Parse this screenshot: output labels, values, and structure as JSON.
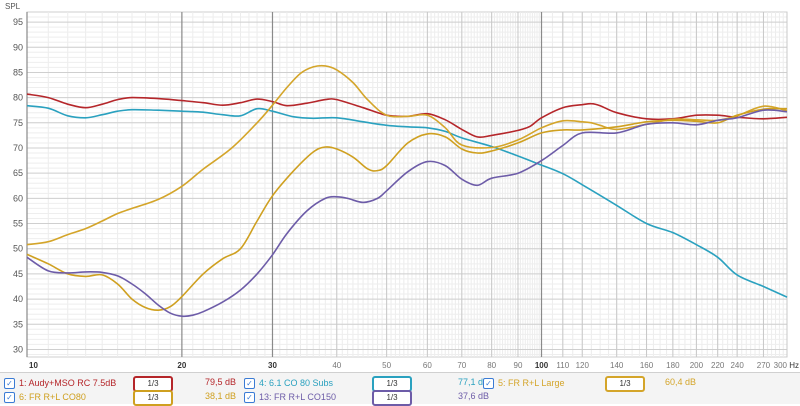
{
  "chart_data": {
    "type": "line",
    "ylabel": "SPL",
    "xunit": "Hz",
    "xscale": "log",
    "xlim": [
      10,
      300
    ],
    "ylim": [
      28.5,
      97
    ],
    "yticks": [
      30,
      35,
      40,
      45,
      50,
      55,
      60,
      65,
      70,
      75,
      80,
      85,
      90,
      95
    ],
    "xticks": [
      {
        "v": 10,
        "label": "10",
        "major": true
      },
      {
        "v": 20,
        "label": "20",
        "major": true
      },
      {
        "v": 30,
        "label": "30",
        "major": true
      },
      {
        "v": 40,
        "label": "40",
        "major": false
      },
      {
        "v": 50,
        "label": "50",
        "major": false
      },
      {
        "v": 60,
        "label": "60",
        "major": false
      },
      {
        "v": 70,
        "label": "70",
        "major": false
      },
      {
        "v": 80,
        "label": "80",
        "major": false
      },
      {
        "v": 90,
        "label": "90",
        "major": false
      },
      {
        "v": 100,
        "label": "100",
        "major": true
      },
      {
        "v": 110,
        "label": "110",
        "major": false
      },
      {
        "v": 120,
        "label": "120",
        "major": false
      },
      {
        "v": 140,
        "label": "140",
        "major": false
      },
      {
        "v": 160,
        "label": "160",
        "major": false
      },
      {
        "v": 180,
        "label": "180",
        "major": false
      },
      {
        "v": 200,
        "label": "200",
        "major": false
      },
      {
        "v": 220,
        "label": "220",
        "major": false
      },
      {
        "v": 240,
        "label": "240",
        "major": false
      },
      {
        "v": 270,
        "label": "270",
        "major": false
      },
      {
        "v": 300,
        "label": "300",
        "major": false
      }
    ],
    "grid": true,
    "series": [
      {
        "name": "1: Audy+MSO RC 7.5dB",
        "color": "#b5262a",
        "smoothing": "1/3",
        "level": "79,5 dB",
        "points": [
          [
            10,
            80.7
          ],
          [
            11,
            80.0
          ],
          [
            12,
            78.7
          ],
          [
            13,
            78.0
          ],
          [
            14,
            78.7
          ],
          [
            15,
            79.6
          ],
          [
            16,
            80.0
          ],
          [
            18,
            79.8
          ],
          [
            20,
            79.4
          ],
          [
            22,
            79.0
          ],
          [
            24,
            78.5
          ],
          [
            26,
            79.0
          ],
          [
            28,
            79.7
          ],
          [
            30,
            79.2
          ],
          [
            32,
            78.4
          ],
          [
            35,
            78.9
          ],
          [
            38,
            79.6
          ],
          [
            40,
            79.6
          ],
          [
            45,
            78.0
          ],
          [
            50,
            76.5
          ],
          [
            55,
            76.3
          ],
          [
            60,
            76.8
          ],
          [
            65,
            75.6
          ],
          [
            70,
            73.7
          ],
          [
            75,
            72.2
          ],
          [
            80,
            72.5
          ],
          [
            90,
            73.5
          ],
          [
            95,
            74.3
          ],
          [
            100,
            76.0
          ],
          [
            110,
            78.0
          ],
          [
            120,
            78.6
          ],
          [
            125,
            78.8
          ],
          [
            130,
            78.4
          ],
          [
            140,
            77.0
          ],
          [
            160,
            75.8
          ],
          [
            180,
            75.8
          ],
          [
            200,
            76.5
          ],
          [
            220,
            76.5
          ],
          [
            240,
            76.1
          ],
          [
            270,
            75.8
          ],
          [
            300,
            76.1
          ]
        ]
      },
      {
        "name": "4: 6.1 CO 80 Subs",
        "color": "#2aa1bf",
        "smoothing": "1/3",
        "level": "77,1 dB",
        "points": [
          [
            10,
            78.4
          ],
          [
            11,
            77.9
          ],
          [
            12,
            76.4
          ],
          [
            13,
            76.0
          ],
          [
            14,
            76.6
          ],
          [
            15,
            77.3
          ],
          [
            16,
            77.6
          ],
          [
            18,
            77.5
          ],
          [
            20,
            77.3
          ],
          [
            22,
            77.1
          ],
          [
            24,
            76.6
          ],
          [
            26,
            76.4
          ],
          [
            28,
            77.8
          ],
          [
            30,
            77.3
          ],
          [
            33,
            76.2
          ],
          [
            36,
            75.9
          ],
          [
            40,
            76.0
          ],
          [
            45,
            75.2
          ],
          [
            50,
            74.5
          ],
          [
            55,
            74.2
          ],
          [
            60,
            74.0
          ],
          [
            65,
            73.3
          ],
          [
            70,
            72.0
          ],
          [
            80,
            70.3
          ],
          [
            90,
            68.4
          ],
          [
            100,
            66.6
          ],
          [
            110,
            64.9
          ],
          [
            120,
            62.7
          ],
          [
            140,
            58.6
          ],
          [
            160,
            55.0
          ],
          [
            180,
            53.2
          ],
          [
            200,
            50.8
          ],
          [
            220,
            48.3
          ],
          [
            240,
            44.8
          ],
          [
            270,
            42.5
          ],
          [
            300,
            40.4
          ]
        ]
      },
      {
        "name": "5: FR R+L Large",
        "color": "#d4a52a",
        "smoothing": "1/3",
        "level": "60,4 dB",
        "points": [
          [
            10,
            50.8
          ],
          [
            11,
            51.4
          ],
          [
            12,
            52.8
          ],
          [
            13,
            54.0
          ],
          [
            14,
            55.5
          ],
          [
            15,
            57.0
          ],
          [
            16,
            58.0
          ],
          [
            18,
            59.8
          ],
          [
            20,
            62.4
          ],
          [
            22,
            65.8
          ],
          [
            25,
            70.0
          ],
          [
            28,
            75.0
          ],
          [
            30,
            78.5
          ],
          [
            32,
            82.0
          ],
          [
            34,
            84.8
          ],
          [
            36,
            86.1
          ],
          [
            38,
            86.3
          ],
          [
            40,
            85.5
          ],
          [
            43,
            83.0
          ],
          [
            46,
            79.5
          ],
          [
            50,
            76.5
          ],
          [
            55,
            76.3
          ],
          [
            60,
            76.5
          ],
          [
            65,
            74.0
          ],
          [
            70,
            70.6
          ],
          [
            80,
            70.1
          ],
          [
            90,
            71.6
          ],
          [
            100,
            74.0
          ],
          [
            110,
            75.4
          ],
          [
            120,
            75.2
          ],
          [
            125,
            75.0
          ],
          [
            130,
            74.5
          ],
          [
            140,
            73.7
          ],
          [
            160,
            74.7
          ],
          [
            180,
            75.7
          ],
          [
            200,
            75.6
          ],
          [
            220,
            75.5
          ],
          [
            240,
            76.4
          ],
          [
            270,
            78.3
          ],
          [
            300,
            77.4
          ]
        ]
      },
      {
        "name": "6: FR R+L CO80",
        "color": "#cfa020",
        "smoothing": "1/3",
        "level": "38,1 dB",
        "points": [
          [
            10,
            48.9
          ],
          [
            11,
            47.0
          ],
          [
            12,
            45.0
          ],
          [
            13,
            44.5
          ],
          [
            14,
            44.8
          ],
          [
            15,
            43.0
          ],
          [
            16,
            40.0
          ],
          [
            17,
            38.3
          ],
          [
            18,
            37.8
          ],
          [
            19,
            38.5
          ],
          [
            20,
            40.5
          ],
          [
            22,
            45.0
          ],
          [
            24,
            48.0
          ],
          [
            26,
            50.0
          ],
          [
            28,
            55.5
          ],
          [
            30,
            60.5
          ],
          [
            33,
            65.5
          ],
          [
            36,
            69.2
          ],
          [
            38,
            70.2
          ],
          [
            40,
            69.8
          ],
          [
            43,
            68.2
          ],
          [
            46,
            65.8
          ],
          [
            48,
            65.5
          ],
          [
            50,
            66.5
          ],
          [
            55,
            71.0
          ],
          [
            60,
            72.8
          ],
          [
            65,
            72.2
          ],
          [
            70,
            69.8
          ],
          [
            75,
            69.0
          ],
          [
            80,
            69.4
          ],
          [
            90,
            71.0
          ],
          [
            100,
            73.0
          ],
          [
            110,
            73.6
          ],
          [
            120,
            73.6
          ],
          [
            140,
            74.2
          ],
          [
            160,
            75.2
          ],
          [
            180,
            75.5
          ],
          [
            200,
            75.3
          ],
          [
            220,
            75.0
          ],
          [
            240,
            76.5
          ],
          [
            270,
            77.7
          ],
          [
            300,
            77.8
          ]
        ]
      },
      {
        "name": "13: FR R+L CO150",
        "color": "#6d5ca8",
        "smoothing": "1/3",
        "level": "37,6 dB",
        "points": [
          [
            10,
            48.3
          ],
          [
            11,
            45.6
          ],
          [
            12,
            45.2
          ],
          [
            13,
            45.4
          ],
          [
            14,
            45.3
          ],
          [
            15,
            44.6
          ],
          [
            16,
            43.0
          ],
          [
            17,
            41.0
          ],
          [
            18,
            38.8
          ],
          [
            19,
            37.2
          ],
          [
            20,
            36.6
          ],
          [
            21,
            36.8
          ],
          [
            22,
            37.5
          ],
          [
            24,
            39.4
          ],
          [
            26,
            41.8
          ],
          [
            28,
            45.0
          ],
          [
            30,
            48.8
          ],
          [
            32,
            53.0
          ],
          [
            35,
            57.5
          ],
          [
            38,
            60.0
          ],
          [
            40,
            60.3
          ],
          [
            42,
            60.0
          ],
          [
            45,
            59.2
          ],
          [
            48,
            60.0
          ],
          [
            50,
            61.5
          ],
          [
            55,
            65.3
          ],
          [
            60,
            67.3
          ],
          [
            65,
            66.5
          ],
          [
            70,
            63.8
          ],
          [
            75,
            62.6
          ],
          [
            80,
            64.0
          ],
          [
            90,
            65.0
          ],
          [
            100,
            67.5
          ],
          [
            110,
            70.5
          ],
          [
            120,
            73.0
          ],
          [
            140,
            73.0
          ],
          [
            160,
            74.7
          ],
          [
            180,
            75.0
          ],
          [
            200,
            74.6
          ],
          [
            220,
            75.5
          ],
          [
            240,
            76.0
          ],
          [
            270,
            77.5
          ],
          [
            300,
            77.2
          ]
        ]
      }
    ]
  }
}
